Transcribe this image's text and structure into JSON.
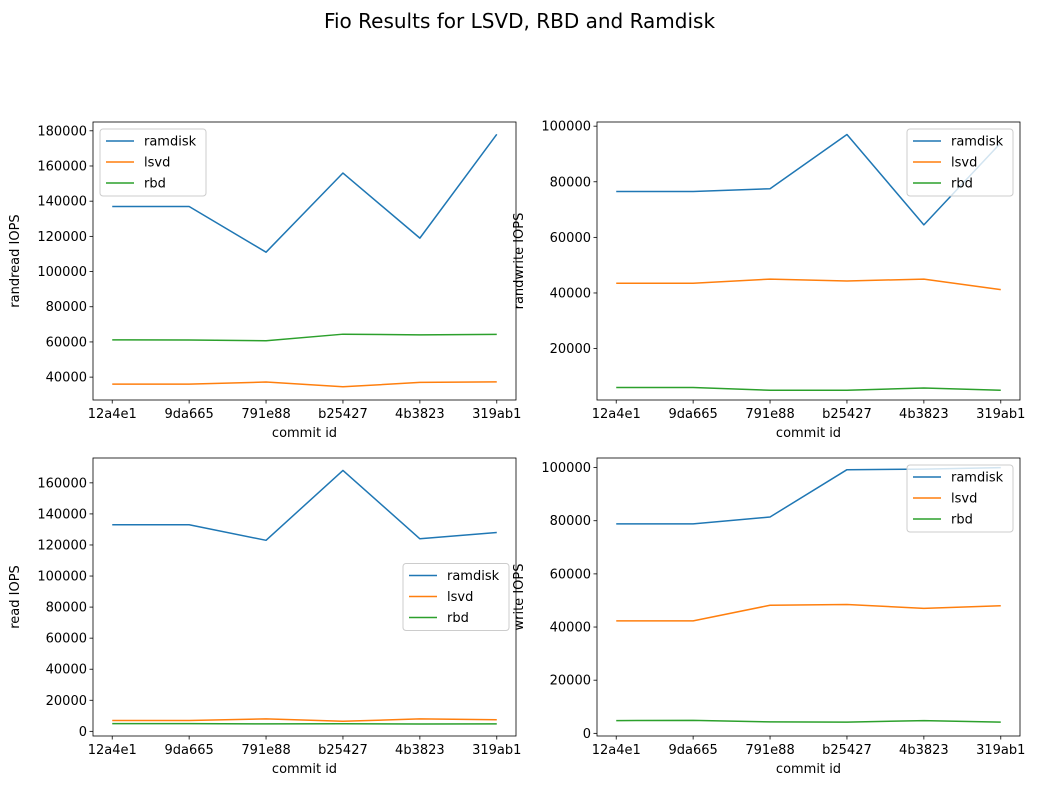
{
  "figure": {
    "suptitle": "Fio Results for LSVD, RBD and Ramdisk"
  },
  "series_colors": {
    "ramdisk": "#1f77b4",
    "lsvd": "#ff7f0e",
    "rbd": "#2ca02c"
  },
  "chart_data": [
    {
      "type": "line",
      "title": "",
      "xlabel": "commit id",
      "ylabel": "randread IOPS",
      "categories": [
        "12a4e1",
        "9da665",
        "791e88",
        "b25427",
        "4b3823",
        "319ab1"
      ],
      "yticks": [
        40000,
        60000,
        80000,
        100000,
        120000,
        140000,
        160000,
        180000
      ],
      "ylim": [
        27000,
        185000
      ],
      "legend_position": "upper left",
      "series": [
        {
          "name": "ramdisk",
          "color": "#1f77b4",
          "values": [
            137000,
            137000,
            111000,
            156000,
            119000,
            178000
          ]
        },
        {
          "name": "lsvd",
          "color": "#ff7f0e",
          "values": [
            36000,
            36000,
            37200,
            34500,
            37000,
            37300
          ]
        },
        {
          "name": "rbd",
          "color": "#2ca02c",
          "values": [
            61200,
            61100,
            60700,
            64400,
            64000,
            64300
          ]
        }
      ]
    },
    {
      "type": "line",
      "title": "",
      "xlabel": "commit id",
      "ylabel": "randwrite IOPS",
      "categories": [
        "12a4e1",
        "9da665",
        "791e88",
        "b25427",
        "4b3823",
        "319ab1"
      ],
      "yticks": [
        20000,
        40000,
        60000,
        80000,
        100000
      ],
      "ylim": [
        1500,
        101500
      ],
      "legend_position": "upper right",
      "series": [
        {
          "name": "ramdisk",
          "color": "#1f77b4",
          "values": [
            76500,
            76500,
            77500,
            97000,
            64500,
            94000
          ]
        },
        {
          "name": "lsvd",
          "color": "#ff7f0e",
          "values": [
            43500,
            43500,
            45000,
            44300,
            45000,
            41200
          ]
        },
        {
          "name": "rbd",
          "color": "#2ca02c",
          "values": [
            6000,
            6000,
            5000,
            5000,
            5800,
            5000
          ]
        }
      ]
    },
    {
      "type": "line",
      "title": "",
      "xlabel": "commit id",
      "ylabel": "read IOPS",
      "categories": [
        "12a4e1",
        "9da665",
        "791e88",
        "b25427",
        "4b3823",
        "319ab1"
      ],
      "yticks": [
        0,
        20000,
        40000,
        60000,
        80000,
        100000,
        120000,
        140000,
        160000
      ],
      "ylim": [
        -3000,
        176000
      ],
      "legend_position": "center right",
      "series": [
        {
          "name": "ramdisk",
          "color": "#1f77b4",
          "values": [
            133000,
            133000,
            123000,
            168000,
            124000,
            128000
          ]
        },
        {
          "name": "lsvd",
          "color": "#ff7f0e",
          "values": [
            7000,
            7000,
            8000,
            6500,
            8000,
            7500
          ]
        },
        {
          "name": "rbd",
          "color": "#2ca02c",
          "values": [
            5000,
            5000,
            4800,
            4900,
            4700,
            4800
          ]
        }
      ]
    },
    {
      "type": "line",
      "title": "",
      "xlabel": "commit id",
      "ylabel": "write IOPS",
      "categories": [
        "12a4e1",
        "9da665",
        "791e88",
        "b25427",
        "4b3823",
        "319ab1"
      ],
      "yticks": [
        0,
        20000,
        40000,
        60000,
        80000,
        100000
      ],
      "ylim": [
        -1000,
        103600
      ],
      "legend_position": "upper right",
      "series": [
        {
          "name": "ramdisk",
          "color": "#1f77b4",
          "values": [
            78800,
            78800,
            81400,
            99200,
            99400,
            100000
          ]
        },
        {
          "name": "lsvd",
          "color": "#ff7f0e",
          "values": [
            42300,
            42300,
            48200,
            48500,
            47000,
            48000
          ]
        },
        {
          "name": "rbd",
          "color": "#2ca02c",
          "values": [
            4800,
            4900,
            4300,
            4200,
            4800,
            4200
          ]
        }
      ]
    }
  ]
}
